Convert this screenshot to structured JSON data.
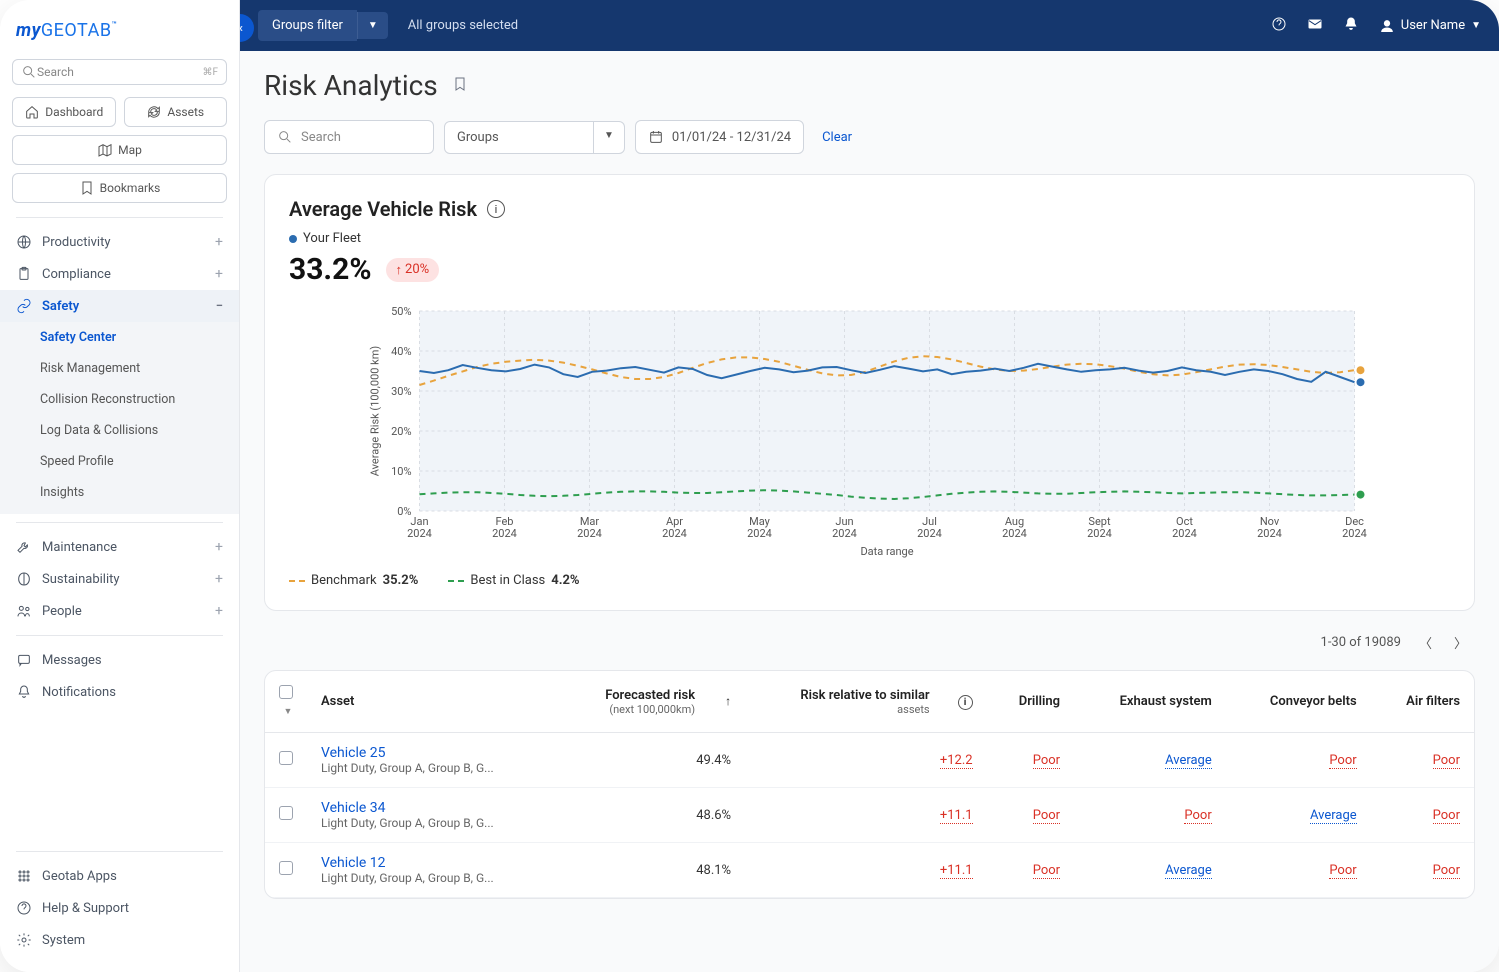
{
  "logo": {
    "my": "my",
    "brand": "GEOTAB",
    "tm": "™"
  },
  "sidebar": {
    "search_placeholder": "Search",
    "search_kbd": "⌘F",
    "quick": [
      {
        "label": "Dashboard",
        "icon": "home"
      },
      {
        "label": "Assets",
        "icon": "refresh"
      },
      {
        "label": "Map",
        "icon": "map"
      },
      {
        "label": "Bookmarks",
        "icon": "bookmark"
      }
    ],
    "nav": [
      {
        "label": "Productivity",
        "icon": "globe",
        "expand": "+"
      },
      {
        "label": "Compliance",
        "icon": "clipboard",
        "expand": "+"
      }
    ],
    "safety": {
      "label": "Safety",
      "icon": "link"
    },
    "safety_sub": [
      {
        "label": "Safety Center",
        "active": true
      },
      {
        "label": "Risk Management"
      },
      {
        "label": "Collision Reconstruction"
      },
      {
        "label": "Log Data & Collisions"
      },
      {
        "label": "Speed Profile"
      },
      {
        "label": "Insights"
      }
    ],
    "nav2": [
      {
        "label": "Maintenance",
        "icon": "wrench",
        "expand": "+"
      },
      {
        "label": "Sustainability",
        "icon": "leaf",
        "expand": "+"
      },
      {
        "label": "People",
        "icon": "people",
        "expand": "+"
      }
    ],
    "nav3": [
      {
        "label": "Messages",
        "icon": "message"
      },
      {
        "label": "Notifications",
        "icon": "bell"
      }
    ],
    "footer": [
      {
        "label": "Geotab Apps",
        "icon": "grid"
      },
      {
        "label": "Help & Support",
        "icon": "help"
      },
      {
        "label": "System",
        "icon": "gear"
      }
    ]
  },
  "topbar": {
    "groups_filter_label": "Groups filter",
    "groups_selected": "All groups selected",
    "user_label": "User Name"
  },
  "page": {
    "title": "Risk Analytics",
    "search_placeholder": "Search",
    "groups_placeholder": "Groups",
    "date_range": "01/01/24 - 12/31/24",
    "clear": "Clear"
  },
  "chart": {
    "title": "Average Vehicle Risk",
    "legend_fleet": "Your Fleet",
    "fleet_color": "#2b6cb0",
    "value": "33.2%",
    "delta": "20%",
    "delta_dir": "↑",
    "y_axis_label": "Average Risk (100,000 km)",
    "x_axis_label": "Data range",
    "y_max": 50,
    "y_step": 10,
    "x_labels": [
      "Jan",
      "Feb",
      "Mar",
      "Apr",
      "May",
      "Jun",
      "Jul",
      "Aug",
      "Sep",
      "Oct",
      "Nov",
      "Dec"
    ],
    "x_year": "2024",
    "x_label_overrides": {
      "Sep": "Sept"
    },
    "benchmark": {
      "label": "Benchmark",
      "value": "35.2%",
      "color": "#e8a33d"
    },
    "bestclass": {
      "label": "Best in Class",
      "value": "4.2%",
      "color": "#2e9e4f"
    },
    "series_fleet": [
      35,
      34.5,
      35.2,
      36.5,
      35.8,
      35.2,
      34.9,
      35.5,
      36.6,
      35.9,
      34.2,
      33.5,
      34.8,
      35.1,
      35.7,
      36.0,
      35.3,
      34.6,
      35.9,
      35.5,
      34.0,
      33.2,
      34.1,
      35.0,
      35.8,
      35.4,
      34.7,
      35.1,
      35.9,
      36.0,
      35.2,
      34.5,
      35.3,
      36.2,
      35.6,
      34.9,
      35.4,
      34.2,
      34.8,
      35.1,
      35.6,
      35.0,
      35.8,
      36.8,
      36.1,
      35.4,
      34.8,
      35.2,
      35.4,
      35.8,
      35.1,
      34.6,
      35.0,
      35.9,
      35.2,
      34.8,
      34.0,
      34.8,
      35.4,
      35.0,
      34.2,
      33.0,
      32.3,
      34.8,
      33.5,
      32.2
    ],
    "series_benchmark": [
      31.5,
      32.6,
      33.8,
      34.9,
      36.0,
      36.8,
      37.3,
      37.6,
      37.8,
      37.6,
      37.1,
      36.3,
      35.4,
      34.4,
      33.5,
      33.0,
      33.0,
      33.5,
      34.5,
      35.8,
      37.0,
      37.9,
      38.4,
      38.4,
      38.0,
      37.3,
      36.3,
      35.3,
      34.4,
      33.9,
      34.0,
      34.8,
      36.1,
      37.4,
      38.3,
      38.7,
      38.5,
      37.9,
      37.0,
      36.1,
      35.4,
      35.0,
      35.1,
      35.5,
      36.1,
      36.6,
      36.8,
      36.7,
      36.2,
      35.6,
      34.8,
      34.2,
      33.9,
      34.1,
      34.7,
      35.4,
      36.1,
      36.6,
      36.7,
      36.5,
      36.0,
      35.4,
      34.8,
      34.5,
      34.7,
      35.2
    ],
    "series_bestclass": [
      4.2,
      4.4,
      4.6,
      4.7,
      4.7,
      4.5,
      4.3,
      4.0,
      3.8,
      3.7,
      3.8,
      4.0,
      4.3,
      4.6,
      4.8,
      4.9,
      4.9,
      4.8,
      4.6,
      4.5,
      4.5,
      4.7,
      4.9,
      5.1,
      5.2,
      5.1,
      4.9,
      4.6,
      4.3,
      4.0,
      3.6,
      3.3,
      3.1,
      3.0,
      3.2,
      3.5,
      3.9,
      4.3,
      4.6,
      4.8,
      4.9,
      4.8,
      4.6,
      4.4,
      4.3,
      4.3,
      4.5,
      4.7,
      4.8,
      4.9,
      4.8,
      4.7,
      4.5,
      4.4,
      4.5,
      4.6,
      4.7,
      4.7,
      4.6,
      4.4,
      4.2,
      4.0,
      3.9,
      3.9,
      4.0,
      4.1
    ],
    "background_color": "#f0f4f9",
    "grid_color": "#d9dde3"
  },
  "table": {
    "pagination": "1-30 of 19089",
    "columns": {
      "asset": "Asset",
      "forecast_l1": "Forecasted risk",
      "forecast_l2": "(next 100,000km)",
      "relative_l1": "Risk relative to similar",
      "relative_l2": "assets",
      "drilling": "Drilling",
      "exhaust": "Exhaust system",
      "conveyor": "Conveyor belts",
      "airfilters": "Air filters"
    },
    "rows": [
      {
        "name": "Vehicle 25",
        "sub": "Light Duty, Group A, Group B, G...",
        "forecast": "49.4%",
        "rel": "+12.2",
        "drilling": "Poor",
        "exhaust": "Average",
        "conveyor": "Poor",
        "airfilters": "Poor"
      },
      {
        "name": "Vehicle 34",
        "sub": "Light Duty, Group A, Group B, G...",
        "forecast": "48.6%",
        "rel": "+11.1",
        "drilling": "Poor",
        "exhaust": "Poor",
        "conveyor": "Average",
        "airfilters": "Poor"
      },
      {
        "name": "Vehicle 12",
        "sub": "Light Duty, Group A, Group B, G...",
        "forecast": "48.1%",
        "rel": "+11.1",
        "drilling": "Poor",
        "exhaust": "Average",
        "conveyor": "Poor",
        "airfilters": "Poor"
      }
    ]
  }
}
